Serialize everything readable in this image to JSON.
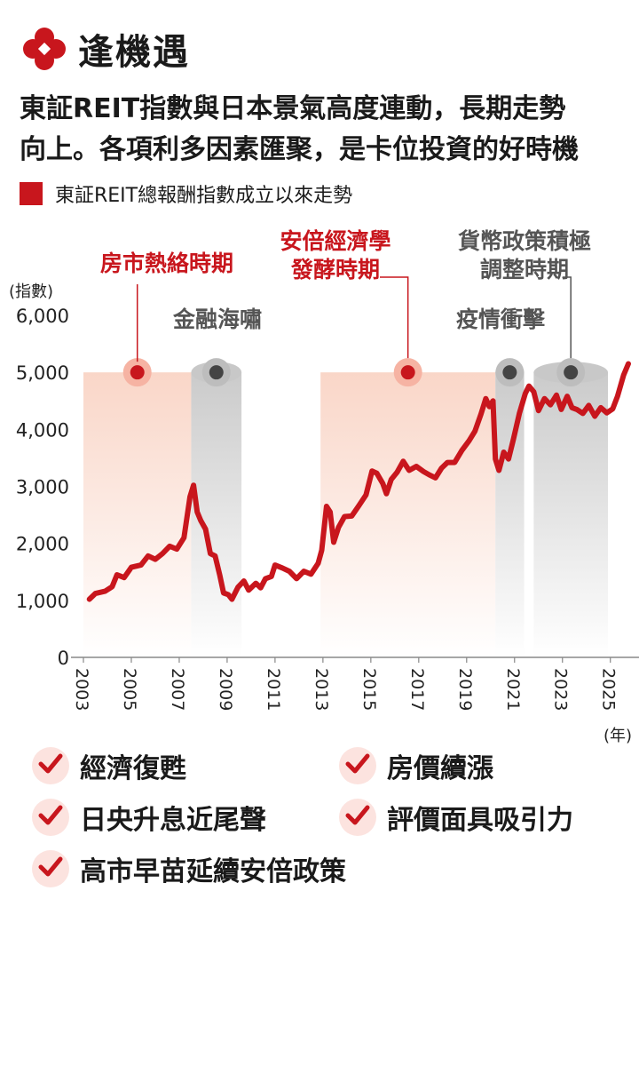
{
  "brand": {
    "name": "逢機遇",
    "logo_icon": "red-flower-logo-icon",
    "accent_color": "#c8161d"
  },
  "headline": {
    "line1": "東証REIT指數與日本景氣高度連動，長期走勢",
    "line2": "向上。各項利多因素匯聚，是卡位投資的好時機"
  },
  "legend_label": "東証REIT總報酬指數成立以來走勢",
  "chart_data": {
    "type": "line",
    "title": "",
    "ylabel": "(指數)",
    "xlabel": "(年)",
    "ylim": [
      0,
      6000
    ],
    "xlim": [
      2003,
      2025.9
    ],
    "y_ticks": [
      0,
      1000,
      2000,
      3000,
      4000,
      5000,
      6000
    ],
    "y_tick_labels": [
      "0",
      "1,000",
      "2,000",
      "3,000",
      "4,000",
      "5,000",
      "6,000"
    ],
    "x_ticks": [
      2003,
      2005,
      2007,
      2009,
      2011,
      2013,
      2015,
      2017,
      2019,
      2021,
      2023,
      2025
    ],
    "x_tick_labels": [
      "2003",
      "2005",
      "2007",
      "2009",
      "2011",
      "2013",
      "2015",
      "2017",
      "2019",
      "2021",
      "2023",
      "2025"
    ],
    "series": [
      {
        "color": "#c8161d",
        "points": [
          [
            2003.25,
            1020
          ],
          [
            2003.5,
            1120
          ],
          [
            2003.9,
            1160
          ],
          [
            2004.2,
            1240
          ],
          [
            2004.4,
            1450
          ],
          [
            2004.7,
            1400
          ],
          [
            2005.0,
            1580
          ],
          [
            2005.4,
            1620
          ],
          [
            2005.7,
            1780
          ],
          [
            2006.0,
            1720
          ],
          [
            2006.3,
            1820
          ],
          [
            2006.6,
            1950
          ],
          [
            2006.9,
            1900
          ],
          [
            2007.2,
            2100
          ],
          [
            2007.45,
            2820
          ],
          [
            2007.6,
            3020
          ],
          [
            2007.75,
            2550
          ],
          [
            2007.9,
            2400
          ],
          [
            2008.1,
            2250
          ],
          [
            2008.3,
            1820
          ],
          [
            2008.5,
            1780
          ],
          [
            2008.7,
            1430
          ],
          [
            2008.85,
            1130
          ],
          [
            2009.05,
            1100
          ],
          [
            2009.2,
            1020
          ],
          [
            2009.45,
            1230
          ],
          [
            2009.7,
            1340
          ],
          [
            2009.9,
            1180
          ],
          [
            2010.2,
            1300
          ],
          [
            2010.4,
            1220
          ],
          [
            2010.6,
            1380
          ],
          [
            2010.85,
            1420
          ],
          [
            2011.0,
            1620
          ],
          [
            2011.3,
            1570
          ],
          [
            2011.6,
            1510
          ],
          [
            2011.9,
            1380
          ],
          [
            2012.2,
            1510
          ],
          [
            2012.5,
            1460
          ],
          [
            2012.8,
            1650
          ],
          [
            2012.95,
            1880
          ],
          [
            2013.15,
            2650
          ],
          [
            2013.3,
            2550
          ],
          [
            2013.45,
            2020
          ],
          [
            2013.65,
            2280
          ],
          [
            2013.9,
            2470
          ],
          [
            2014.2,
            2480
          ],
          [
            2014.5,
            2660
          ],
          [
            2014.8,
            2850
          ],
          [
            2015.05,
            3270
          ],
          [
            2015.25,
            3230
          ],
          [
            2015.5,
            3050
          ],
          [
            2015.65,
            2870
          ],
          [
            2015.85,
            3120
          ],
          [
            2016.1,
            3250
          ],
          [
            2016.35,
            3440
          ],
          [
            2016.6,
            3280
          ],
          [
            2016.9,
            3350
          ],
          [
            2017.2,
            3260
          ],
          [
            2017.45,
            3200
          ],
          [
            2017.7,
            3150
          ],
          [
            2017.95,
            3320
          ],
          [
            2018.2,
            3420
          ],
          [
            2018.5,
            3420
          ],
          [
            2018.8,
            3630
          ],
          [
            2019.1,
            3800
          ],
          [
            2019.35,
            3970
          ],
          [
            2019.6,
            4270
          ],
          [
            2019.8,
            4540
          ],
          [
            2019.95,
            4400
          ],
          [
            2020.1,
            4500
          ],
          [
            2020.2,
            3480
          ],
          [
            2020.35,
            3280
          ],
          [
            2020.55,
            3600
          ],
          [
            2020.75,
            3480
          ],
          [
            2020.95,
            3820
          ],
          [
            2021.2,
            4280
          ],
          [
            2021.45,
            4630
          ],
          [
            2021.6,
            4760
          ],
          [
            2021.8,
            4660
          ],
          [
            2022.0,
            4330
          ],
          [
            2022.25,
            4540
          ],
          [
            2022.5,
            4430
          ],
          [
            2022.75,
            4600
          ],
          [
            2022.95,
            4350
          ],
          [
            2023.2,
            4580
          ],
          [
            2023.4,
            4380
          ],
          [
            2023.6,
            4350
          ],
          [
            2023.85,
            4280
          ],
          [
            2024.1,
            4420
          ],
          [
            2024.35,
            4230
          ],
          [
            2024.6,
            4380
          ],
          [
            2024.85,
            4290
          ],
          [
            2025.1,
            4360
          ],
          [
            2025.3,
            4580
          ],
          [
            2025.55,
            4950
          ],
          [
            2025.75,
            5150
          ]
        ]
      }
    ],
    "periods": [
      {
        "label": "房市熱絡時期",
        "start": 2003.0,
        "end": 2007.5,
        "kind": "positive"
      },
      {
        "label": "金融海嘯",
        "start": 2007.5,
        "end": 2009.6,
        "kind": "negative"
      },
      {
        "label": "安倍經濟學\n發酵時期",
        "start": 2012.9,
        "end": 2020.2,
        "kind": "positive"
      },
      {
        "label": "疫情衝擊",
        "start": 2020.2,
        "end": 2021.4,
        "kind": "negative"
      },
      {
        "label": "貨幣政策積極\n調整時期",
        "start": 2021.8,
        "end": 2024.9,
        "kind": "negative"
      }
    ],
    "period_colors": {
      "positive": "#f9d4c5",
      "negative": "#c8c8c8"
    }
  },
  "checklist": [
    {
      "label": "經濟復甦"
    },
    {
      "label": "房價續漲"
    },
    {
      "label": "日央升息近尾聲"
    },
    {
      "label": "評價面具吸引力"
    },
    {
      "label": "高市早苗延續安倍政策"
    }
  ],
  "check_icon": "checkmark-icon"
}
